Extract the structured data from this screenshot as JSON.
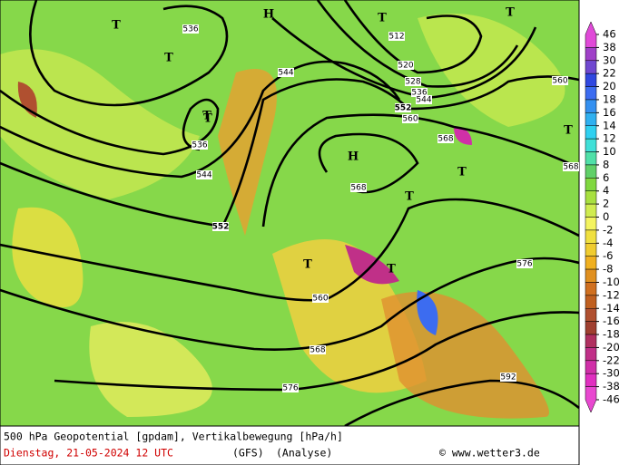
{
  "map": {
    "contour_labels": [
      "536",
      "544",
      "536",
      "544",
      "552",
      "512",
      "520",
      "528",
      "536",
      "544",
      "552",
      "560",
      "560",
      "568",
      "568",
      "568",
      "576",
      "560",
      "568",
      "576",
      "592"
    ],
    "markers": [
      "T",
      "T",
      "T",
      "T",
      "H",
      "T",
      "T",
      "H",
      "T",
      "T",
      "T",
      "T",
      "T"
    ]
  },
  "colorbar": {
    "levels": [
      46,
      38,
      30,
      22,
      20,
      18,
      16,
      14,
      12,
      10,
      8,
      6,
      4,
      2,
      0,
      -2,
      -4,
      -6,
      -8,
      -10,
      -12,
      -14,
      -16,
      -18,
      -20,
      -22,
      -30,
      -38,
      -46
    ],
    "colors": [
      "#e04ad8",
      "#a040c8",
      "#7048d0",
      "#3048e0",
      "#3c6cf0",
      "#3490f0",
      "#30b0f0",
      "#30d0f0",
      "#40e0d8",
      "#50e0a8",
      "#60d068",
      "#80d840",
      "#a8e040",
      "#d0ec50",
      "#f4f460",
      "#f0e040",
      "#f0cc30",
      "#f0b020",
      "#e09020",
      "#d07020",
      "#c06020",
      "#b05030",
      "#a04030",
      "#b03060",
      "#c03088",
      "#d030a8",
      "#e030c0",
      "#e848d0"
    ]
  },
  "footer": {
    "title": "500 hPa Geopotential [gpdam], Vertikalbewegung [hPa/h]",
    "date": "Dienstag, 21-05-2024  12 UTC",
    "model": "(GFS)",
    "run": "(Analyse)",
    "credit": "© www.wetter3.de"
  }
}
